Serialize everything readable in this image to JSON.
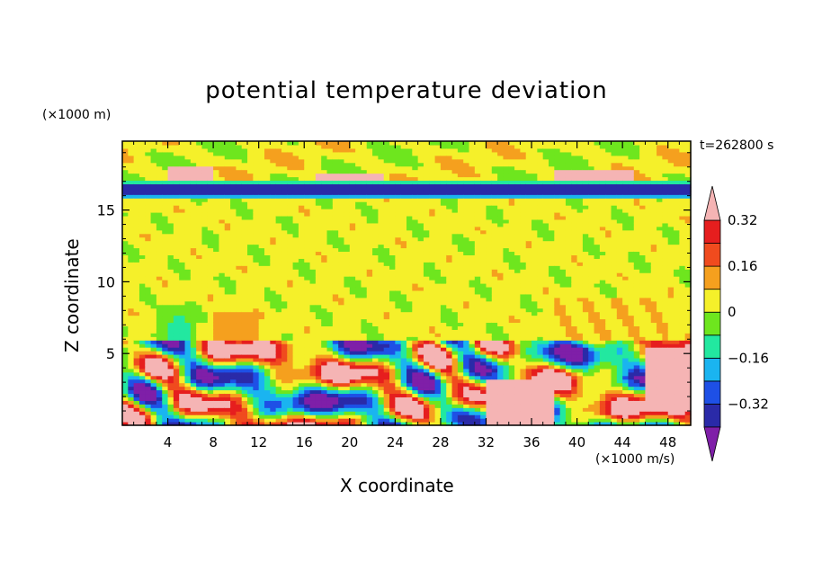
{
  "chart_data": {
    "type": "heatmap",
    "title": "potential temperature deviation",
    "xlabel": "X coordinate",
    "ylabel": "Z coordinate",
    "x_units": "(×1000 m/s)",
    "y_units": "(×1000 m)",
    "time_label": "t=262800 s",
    "xlim": [
      0,
      50
    ],
    "ylim": [
      0,
      19.8
    ],
    "x_ticks": [
      4,
      8,
      12,
      16,
      20,
      24,
      28,
      32,
      36,
      40,
      44,
      48
    ],
    "y_ticks": [
      5,
      10,
      15
    ],
    "colorbar": {
      "tick_labels": [
        "0.32",
        "0.16",
        "0",
        "-0.16",
        "-0.32"
      ],
      "tick_values": [
        0.32,
        0.16,
        0,
        -0.16,
        -0.32
      ],
      "levels": [
        -0.4,
        -0.32,
        -0.24,
        -0.16,
        -0.08,
        0,
        0.08,
        0.16,
        0.24,
        0.32,
        0.4
      ],
      "colors": [
        "#7f1fa8",
        "#2a2aa8",
        "#1e50e6",
        "#1ab4f0",
        "#22e8a0",
        "#6ee61e",
        "#f5f02a",
        "#f5a01e",
        "#f04b1e",
        "#e61e1e",
        "#f5b4b4"
      ],
      "extend": "both"
    },
    "layers": [
      {
        "z": [
          16.0,
          16.8
        ],
        "description_value": -0.36
      },
      {
        "z": [
          6.0,
          16.0
        ],
        "description_value": 0.04
      },
      {
        "z": [
          0,
          6.0
        ],
        "description_value": "mixed -0.40..0.40"
      },
      {
        "z": [
          16.8,
          19.8
        ],
        "description_value": 0.02
      }
    ],
    "grid": false,
    "colorbar_position": "right"
  }
}
